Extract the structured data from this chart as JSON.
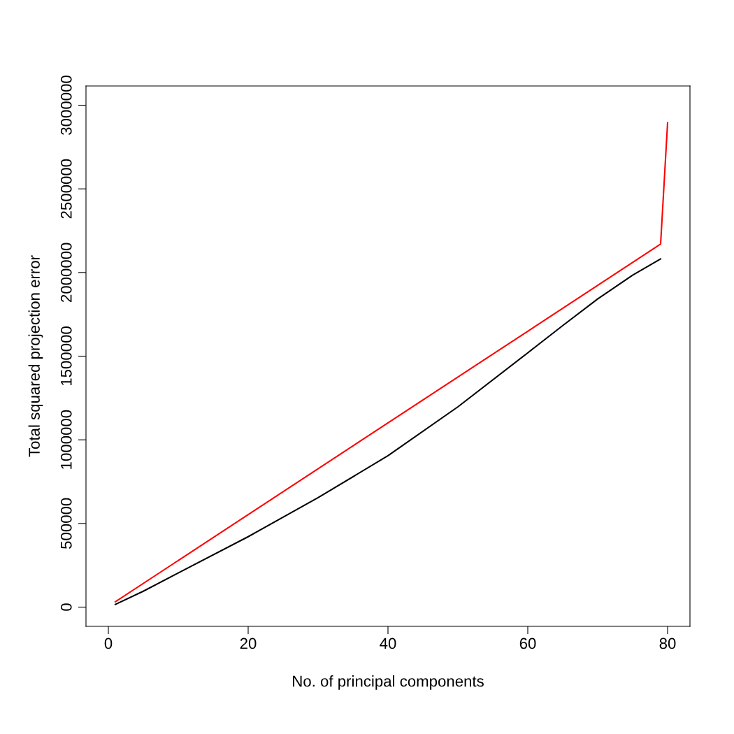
{
  "chart_data": {
    "type": "line",
    "xlabel": "No. of principal components",
    "ylabel": "Total squared projection error",
    "xlim": [
      -3.2,
      83.2
    ],
    "ylim": [
      -115000,
      3115000
    ],
    "xticks": [
      0,
      20,
      40,
      60,
      80
    ],
    "yticks": [
      0,
      500000,
      1000000,
      1500000,
      2000000,
      2500000,
      3000000
    ],
    "grid": false,
    "marker": "none",
    "line_style": "solid",
    "series": [
      {
        "color": "#ff0000",
        "x": [
          1,
          79,
          80
        ],
        "values": [
          32000,
          2170000,
          2895000
        ]
      },
      {
        "color": "#000000",
        "x": [
          1,
          5,
          10,
          20,
          30,
          40,
          50,
          60,
          65,
          70,
          75,
          79
        ],
        "values": [
          16000,
          95000,
          204000,
          421000,
          654000,
          905000,
          1197000,
          1520000,
          1683000,
          1842000,
          1984000,
          2081000
        ]
      }
    ]
  }
}
